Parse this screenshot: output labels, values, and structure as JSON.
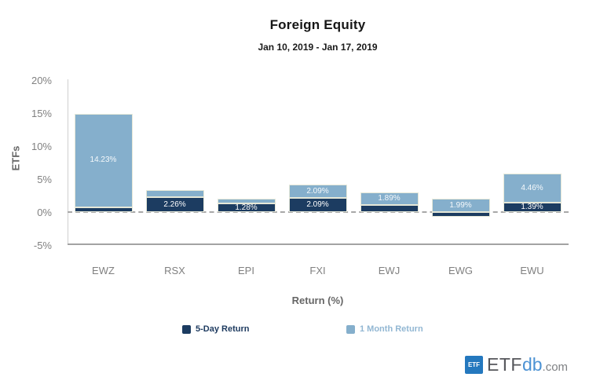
{
  "header": {
    "title": "Foreign Equity",
    "subtitle": "Jan 10, 2019 - Jan 17, 2019"
  },
  "chart_data": {
    "type": "bar",
    "stacked": true,
    "orientation": "vertical",
    "title": "Foreign Equity",
    "subtitle": "Jan 10, 2019 - Jan 17, 2019",
    "xlabel": "Return (%)",
    "ylabel": "ETFs",
    "ylim": [
      -5,
      20
    ],
    "y_ticks": [
      {
        "label": "20%",
        "value": 20
      },
      {
        "label": "15%",
        "value": 15
      },
      {
        "label": "10%",
        "value": 10
      },
      {
        "label": "5%",
        "value": 5
      },
      {
        "label": "0%",
        "value": 0
      },
      {
        "label": "-5%",
        "value": -5
      }
    ],
    "zero_line_style": "dashed",
    "grid": false,
    "legend_position": "bottom",
    "categories": [
      "EWZ",
      "RSX",
      "EPI",
      "FXI",
      "EWJ",
      "EWG",
      "EWU"
    ],
    "series": [
      {
        "name": "5-Day Return",
        "color": "#1c3c61",
        "values": [
          0.7,
          2.26,
          1.28,
          2.09,
          1.1,
          -0.7,
          1.39
        ],
        "point_labels": [
          "",
          "2.26%",
          "1.28%",
          "2.09%",
          "",
          "",
          "1.39%"
        ]
      },
      {
        "name": "1 Month Return",
        "color": "#85afcc",
        "values": [
          14.23,
          1.1,
          0.7,
          2.09,
          1.89,
          1.99,
          4.46
        ],
        "point_labels": [
          "14.23%",
          "",
          "",
          "2.09%",
          "1.89%",
          "1.99%",
          "4.46%"
        ]
      }
    ]
  },
  "legend": {
    "items": [
      {
        "label": "5-Day Return",
        "swatch_color": "#1c3c61",
        "text_color": "#1d3a5f"
      },
      {
        "label": "1 Month Return",
        "swatch_color": "#85afcc",
        "text_color": "#92b7d3"
      }
    ]
  },
  "footer": {
    "logo": {
      "badge_text": "ETF",
      "badge_color": "#2478be",
      "etf_text": "ETF",
      "etf_color": "#55565b",
      "db_text": "db",
      "db_color": "#4d93d4",
      "com_text": ".com",
      "com_color": "#7f8184"
    }
  }
}
